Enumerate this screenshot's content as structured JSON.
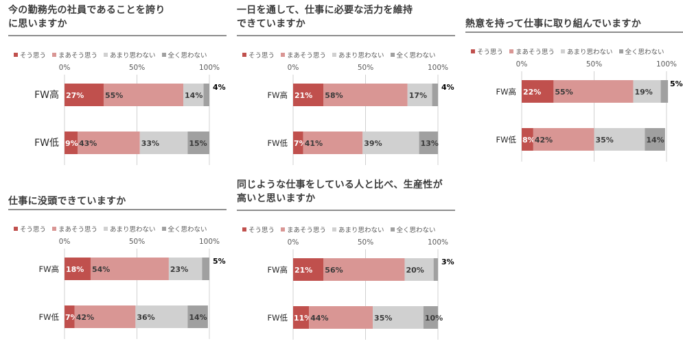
{
  "legend": [
    {
      "label": "そう思う",
      "color": "#c0504d"
    },
    {
      "label": "まあそう思う",
      "color": "#d99694"
    },
    {
      "label": "あまり思わない",
      "color": "#d0d0d0"
    },
    {
      "label": "全く思わない",
      "color": "#a0a0a0"
    }
  ],
  "chart_data": [
    {
      "type": "bar",
      "title": "今の勤務先の社員であることを誇りに思いますか",
      "orientation": "horizontal",
      "stacked": "percent",
      "xlim": [
        0,
        100
      ],
      "ticks": [
        "0%",
        "50%",
        "100%"
      ],
      "grid": true,
      "legend_position": "top-left",
      "categories": [
        "FW高",
        "FW低"
      ],
      "series": [
        {
          "name": "そう思う",
          "values": [
            27,
            9
          ]
        },
        {
          "name": "まあそう思う",
          "values": [
            55,
            43
          ]
        },
        {
          "name": "あまり思わない",
          "values": [
            14,
            33
          ]
        },
        {
          "name": "全く思わない",
          "values": [
            4,
            15
          ]
        }
      ]
    },
    {
      "type": "bar",
      "title": "一日を通して、仕事に必要な活力を維持できていますか",
      "orientation": "horizontal",
      "stacked": "percent",
      "xlim": [
        0,
        100
      ],
      "ticks": [
        "0%",
        "50%",
        "100%"
      ],
      "grid": true,
      "legend_position": "top-left",
      "categories": [
        "FW高",
        "FW低"
      ],
      "series": [
        {
          "name": "そう思う",
          "values": [
            21,
            7
          ]
        },
        {
          "name": "まあそう思う",
          "values": [
            58,
            41
          ]
        },
        {
          "name": "あまり思わない",
          "values": [
            17,
            39
          ]
        },
        {
          "name": "全く思わない",
          "values": [
            4,
            13
          ]
        }
      ]
    },
    {
      "type": "bar",
      "title": "熱意を持って仕事に取り組んでいますか",
      "orientation": "horizontal",
      "stacked": "percent",
      "xlim": [
        0,
        100
      ],
      "ticks": [
        "0%",
        "50%",
        "100%"
      ],
      "grid": true,
      "legend_position": "top-left",
      "categories": [
        "FW高",
        "FW低"
      ],
      "series": [
        {
          "name": "そう思う",
          "values": [
            22,
            8
          ]
        },
        {
          "name": "まあそう思う",
          "values": [
            55,
            42
          ]
        },
        {
          "name": "あまり思わない",
          "values": [
            19,
            35
          ]
        },
        {
          "name": "全く思わない",
          "values": [
            5,
            14
          ]
        }
      ]
    },
    {
      "type": "bar",
      "title": "仕事に没頭できていますか",
      "orientation": "horizontal",
      "stacked": "percent",
      "xlim": [
        0,
        100
      ],
      "ticks": [
        "0%",
        "50%",
        "100%"
      ],
      "grid": true,
      "legend_position": "top-left",
      "categories": [
        "FW高",
        "FW低"
      ],
      "series": [
        {
          "name": "そう思う",
          "values": [
            18,
            7
          ]
        },
        {
          "name": "まあそう思う",
          "values": [
            54,
            42
          ]
        },
        {
          "name": "あまり思わない",
          "values": [
            23,
            36
          ]
        },
        {
          "name": "全く思わない",
          "values": [
            5,
            14
          ]
        }
      ]
    },
    {
      "type": "bar",
      "title": "同じような仕事をしている人と比べ、生産性が高いと思いますか",
      "orientation": "horizontal",
      "stacked": "percent",
      "xlim": [
        0,
        100
      ],
      "ticks": [
        "0%",
        "50%",
        "100%"
      ],
      "grid": true,
      "legend_position": "top-left",
      "categories": [
        "FW高",
        "FW低"
      ],
      "series": [
        {
          "name": "そう思う",
          "values": [
            21,
            11
          ]
        },
        {
          "name": "まあそう思う",
          "values": [
            56,
            44
          ]
        },
        {
          "name": "あまり思わない",
          "values": [
            20,
            35
          ]
        },
        {
          "name": "全く思わない",
          "values": [
            3,
            10
          ]
        }
      ]
    }
  ]
}
